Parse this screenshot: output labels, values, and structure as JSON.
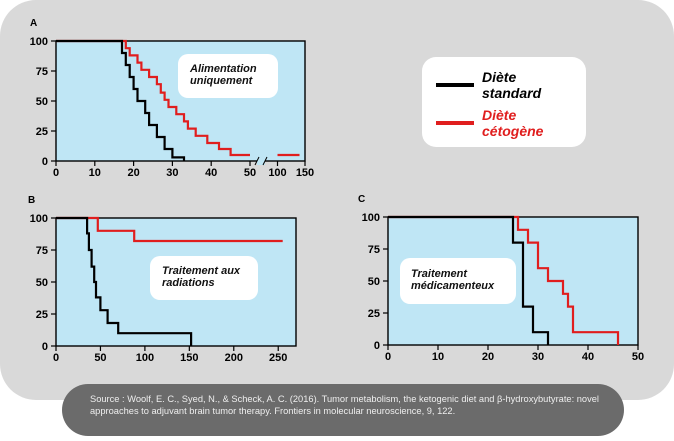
{
  "colors": {
    "card": "#d9d9d9",
    "plot_bg": "#bfe6f5",
    "standard": "#000000",
    "ketogenic": "#e01e1e"
  },
  "legend": {
    "standard": "Diète standard",
    "ketogenic": "Diète cétogène"
  },
  "source_text": "Source : Woolf, E. C., Syed, N., & Scheck, A. C. (2016). Tumor metabolism, the ketogenic diet and β-hydroxybutyrate: novel approaches to adjuvant brain tumor therapy. Frontiers in molecular neuroscience, 9, 122.",
  "chart_data": [
    {
      "panel": "A",
      "type": "line",
      "annotation": "Alimentation uniquement",
      "x_ticks": [
        "0",
        "10",
        "20",
        "30",
        "40",
        "50",
        "100",
        "150"
      ],
      "y_ticks": [
        "0",
        "25",
        "50",
        "75",
        "100"
      ],
      "xlim": [
        0,
        150
      ],
      "ylim": [
        0,
        100
      ],
      "x_axis_break": "between 50 and 100",
      "series": [
        {
          "key": "standard",
          "points": [
            [
              0,
              100
            ],
            [
              17,
              100
            ],
            [
              17,
              90
            ],
            [
              18,
              90
            ],
            [
              18,
              80
            ],
            [
              19,
              80
            ],
            [
              19,
              70
            ],
            [
              20,
              70
            ],
            [
              20,
              60
            ],
            [
              21,
              60
            ],
            [
              21,
              50
            ],
            [
              23,
              50
            ],
            [
              23,
              40
            ],
            [
              24,
              40
            ],
            [
              24,
              30
            ],
            [
              26,
              30
            ],
            [
              26,
              20
            ],
            [
              28,
              20
            ],
            [
              28,
              10
            ],
            [
              30,
              10
            ],
            [
              30,
              3
            ],
            [
              33,
              3
            ],
            [
              33,
              0
            ]
          ]
        },
        {
          "key": "ketogenic",
          "points": [
            [
              0,
              100
            ],
            [
              18,
              100
            ],
            [
              18,
              94
            ],
            [
              19,
              94
            ],
            [
              19,
              88
            ],
            [
              21,
              88
            ],
            [
              21,
              82
            ],
            [
              22,
              82
            ],
            [
              22,
              76
            ],
            [
              24,
              76
            ],
            [
              24,
              70
            ],
            [
              26,
              70
            ],
            [
              26,
              64
            ],
            [
              27,
              64
            ],
            [
              27,
              57
            ],
            [
              28,
              57
            ],
            [
              28,
              51
            ],
            [
              29,
              51
            ],
            [
              29,
              45
            ],
            [
              31,
              45
            ],
            [
              31,
              39
            ],
            [
              33,
              39
            ],
            [
              33,
              33
            ],
            [
              34,
              33
            ],
            [
              34,
              27
            ],
            [
              36,
              27
            ],
            [
              36,
              21
            ],
            [
              39,
              21
            ],
            [
              39,
              15
            ],
            [
              42,
              15
            ],
            [
              42,
              10
            ],
            [
              45,
              10
            ],
            [
              45,
              5
            ],
            [
              50,
              5
            ],
            [
              115,
              5
            ],
            [
              140,
              5
            ]
          ]
        }
      ]
    },
    {
      "panel": "B",
      "type": "line",
      "annotation": "Traitement aux radiations",
      "x_ticks": [
        "0",
        "50",
        "100",
        "150",
        "200",
        "250"
      ],
      "y_ticks": [
        "0",
        "25",
        "50",
        "75",
        "100"
      ],
      "xlim": [
        0,
        270
      ],
      "ylim": [
        0,
        100
      ],
      "series": [
        {
          "key": "standard",
          "points": [
            [
              0,
              100
            ],
            [
              35,
              100
            ],
            [
              35,
              88
            ],
            [
              37,
              88
            ],
            [
              37,
              75
            ],
            [
              40,
              75
            ],
            [
              40,
              62
            ],
            [
              43,
              62
            ],
            [
              43,
              50
            ],
            [
              45,
              50
            ],
            [
              45,
              38
            ],
            [
              50,
              38
            ],
            [
              50,
              28
            ],
            [
              58,
              28
            ],
            [
              58,
              18
            ],
            [
              70,
              18
            ],
            [
              70,
              10
            ],
            [
              152,
              10
            ],
            [
              152,
              0
            ]
          ]
        },
        {
          "key": "ketogenic",
          "points": [
            [
              0,
              100
            ],
            [
              47,
              100
            ],
            [
              47,
              90
            ],
            [
              88,
              90
            ],
            [
              88,
              82
            ],
            [
              255,
              82
            ]
          ]
        }
      ]
    },
    {
      "panel": "C",
      "type": "line",
      "annotation": "Traitement médicamenteux",
      "x_ticks": [
        "0",
        "10",
        "20",
        "30",
        "40",
        "50"
      ],
      "y_ticks": [
        "0",
        "25",
        "50",
        "75",
        "100"
      ],
      "xlim": [
        0,
        50
      ],
      "ylim": [
        0,
        100
      ],
      "series": [
        {
          "key": "standard",
          "points": [
            [
              0,
              100
            ],
            [
              25,
              100
            ],
            [
              25,
              80
            ],
            [
              27,
              80
            ],
            [
              27,
              30
            ],
            [
              29,
              30
            ],
            [
              29,
              10
            ],
            [
              32,
              10
            ],
            [
              32,
              0
            ]
          ]
        },
        {
          "key": "ketogenic",
          "points": [
            [
              0,
              100
            ],
            [
              26,
              100
            ],
            [
              26,
              90
            ],
            [
              28,
              90
            ],
            [
              28,
              80
            ],
            [
              30,
              80
            ],
            [
              30,
              60
            ],
            [
              32,
              60
            ],
            [
              32,
              50
            ],
            [
              35,
              50
            ],
            [
              35,
              40
            ],
            [
              36,
              40
            ],
            [
              36,
              30
            ],
            [
              37,
              30
            ],
            [
              37,
              10
            ],
            [
              46,
              10
            ],
            [
              46,
              0
            ]
          ]
        }
      ]
    }
  ]
}
